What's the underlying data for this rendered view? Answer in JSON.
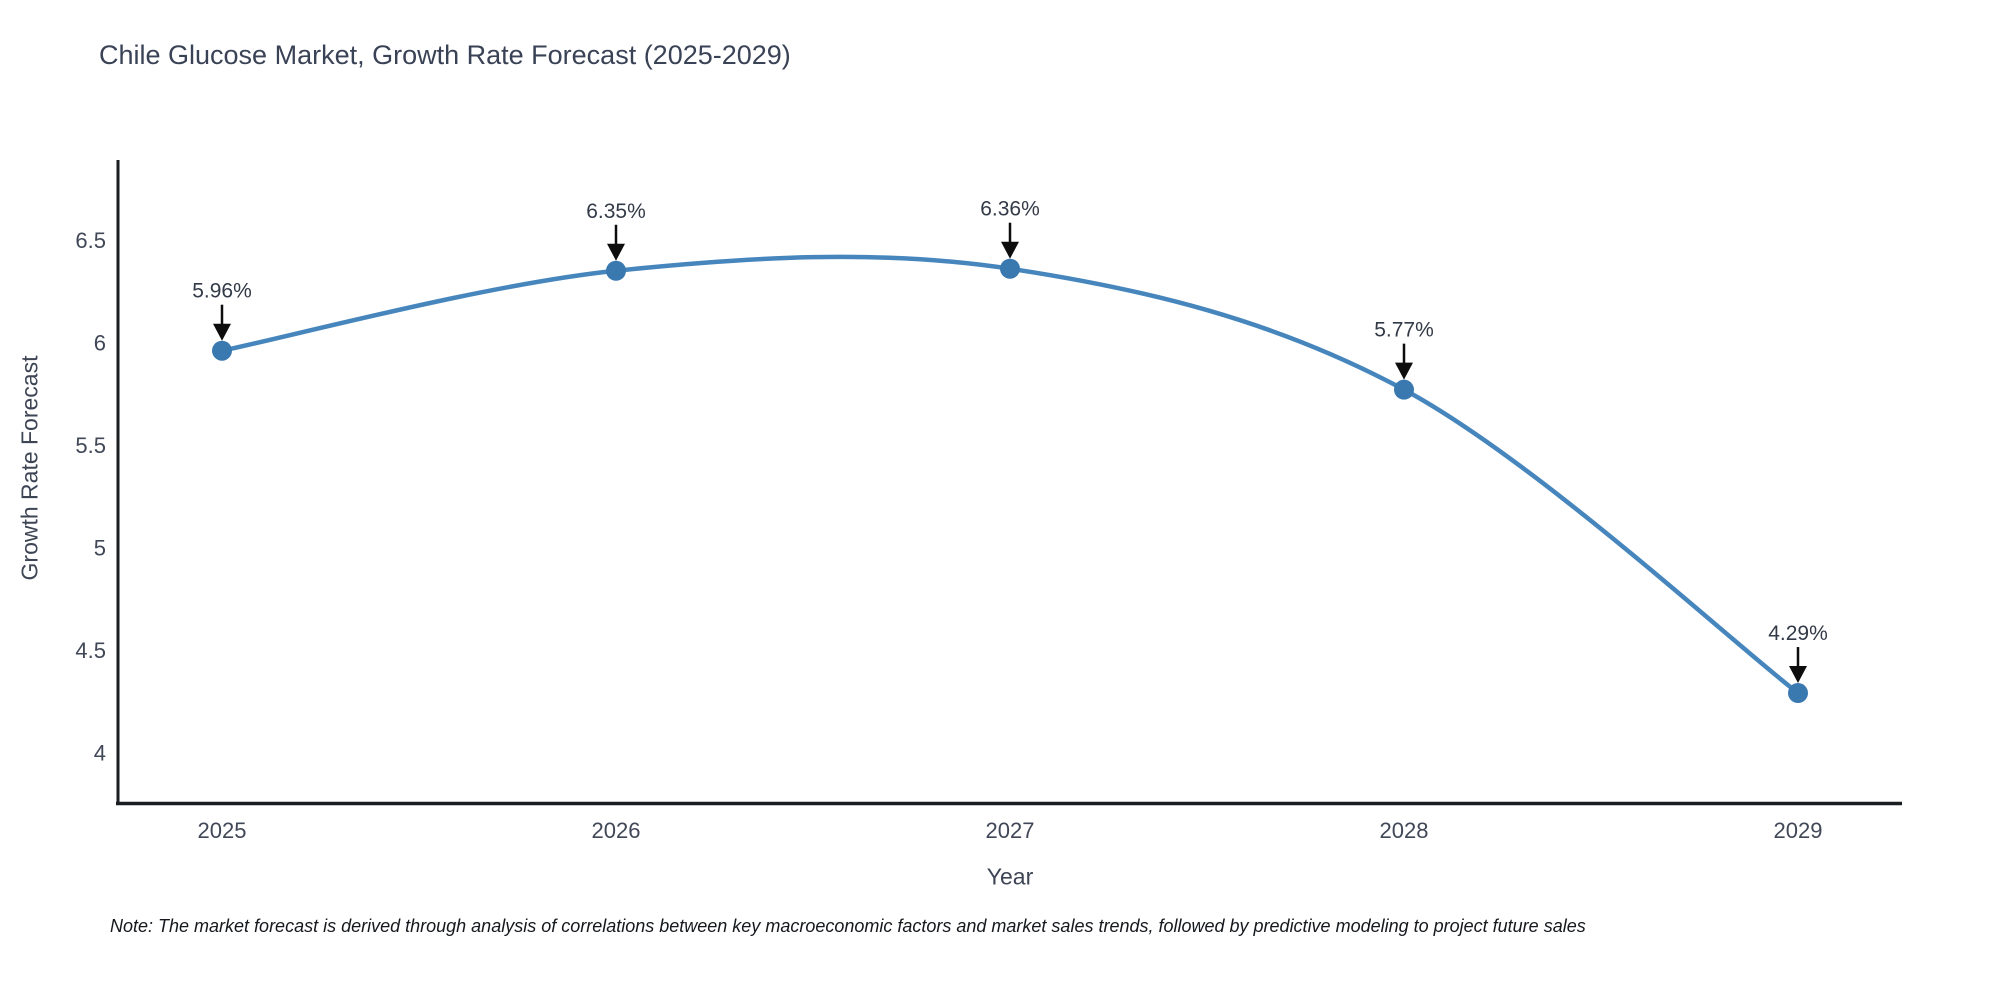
{
  "title": "Chile Glucose Market, Growth Rate Forecast (2025-2029)",
  "x_axis": {
    "title": "Year",
    "ticks": [
      "2025",
      "2026",
      "2027",
      "2028",
      "2029"
    ]
  },
  "y_axis": {
    "title": "Growth Rate Forecast",
    "ticks": [
      "6.5",
      "6",
      "5.5",
      "5",
      "4.5",
      "4"
    ]
  },
  "note": "Note: The market forecast is derived through analysis of correlations between key macroeconomic factors and market sales trends, followed by predictive modeling to project future sales",
  "colors": {
    "line": "#4686bd",
    "marker": "#3a78b0",
    "axis": "#1a1d21",
    "arrow": "#0d0d0d"
  },
  "chart_data": {
    "type": "line",
    "curve": "spline",
    "x": [
      2025,
      2026,
      2027,
      2028,
      2029
    ],
    "values": [
      5.96,
      6.35,
      6.36,
      5.77,
      4.29
    ],
    "labels": [
      "5.96%",
      "6.35%",
      "6.36%",
      "5.77%",
      "4.29%"
    ],
    "title": "Chile Glucose Market, Growth Rate Forecast (2025-2029)",
    "xlabel": "Year",
    "ylabel": "Growth Rate Forecast",
    "ylim": [
      3.75,
      6.9
    ],
    "grid": false,
    "legend": false,
    "annotations": "value labels with downward arrows above each point"
  }
}
